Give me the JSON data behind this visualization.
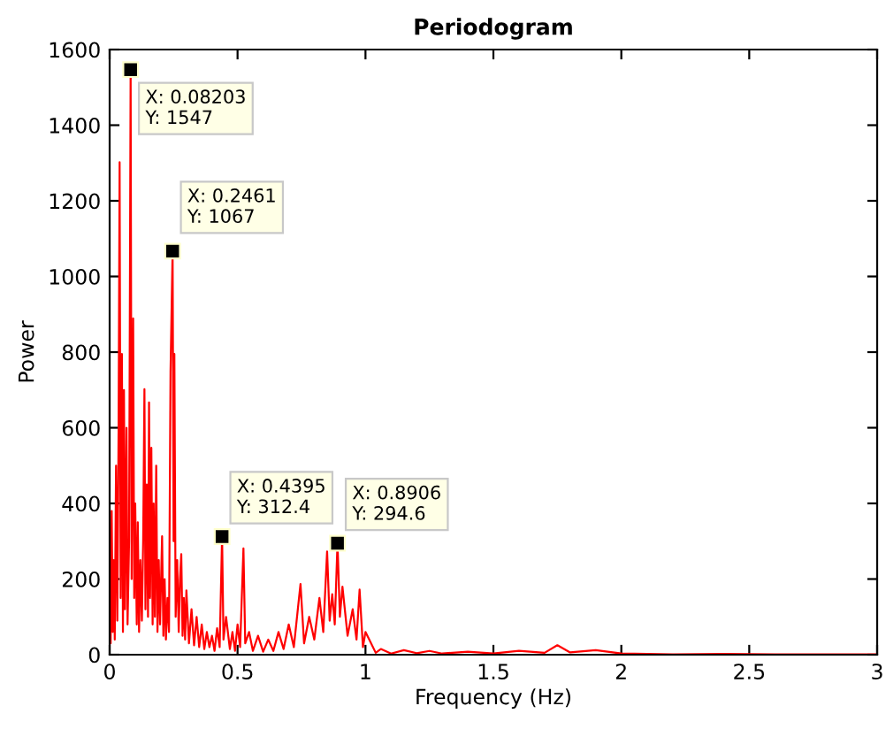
{
  "chart_data": {
    "type": "line",
    "title": "Periodogram",
    "xlabel": "Frequency (Hz)",
    "ylabel": "Power",
    "series": [
      {
        "color": "#ff0000",
        "x": [
          0,
          0.004,
          0.008,
          0.012,
          0.016,
          0.02,
          0.025,
          0.03,
          0.035,
          0.039,
          0.043,
          0.048,
          0.052,
          0.056,
          0.06,
          0.066,
          0.07,
          0.076,
          0.08203,
          0.086,
          0.092,
          0.096,
          0.1,
          0.106,
          0.11,
          0.115,
          0.12,
          0.126,
          0.131,
          0.136,
          0.14,
          0.145,
          0.15,
          0.154,
          0.158,
          0.163,
          0.168,
          0.172,
          0.177,
          0.182,
          0.187,
          0.192,
          0.197,
          0.205,
          0.21,
          0.215,
          0.22,
          0.226,
          0.232,
          0.238,
          0.2461,
          0.25,
          0.253,
          0.258,
          0.264,
          0.27,
          0.275,
          0.28,
          0.285,
          0.29,
          0.295,
          0.3,
          0.31,
          0.32,
          0.33,
          0.34,
          0.35,
          0.36,
          0.37,
          0.38,
          0.39,
          0.4,
          0.41,
          0.42,
          0.43,
          0.4395,
          0.445,
          0.455,
          0.47,
          0.48,
          0.49,
          0.5,
          0.51,
          0.523,
          0.53,
          0.545,
          0.56,
          0.58,
          0.6,
          0.62,
          0.64,
          0.66,
          0.68,
          0.7,
          0.72,
          0.746,
          0.76,
          0.78,
          0.8,
          0.82,
          0.835,
          0.85,
          0.86,
          0.87,
          0.88,
          0.8906,
          0.9,
          0.91,
          0.93,
          0.95,
          0.965,
          0.977,
          0.99,
          1.0,
          1.02,
          1.04,
          1.06,
          1.1,
          1.15,
          1.2,
          1.25,
          1.3,
          1.4,
          1.5,
          1.6,
          1.7,
          1.75,
          1.8,
          1.9,
          2.0,
          2.2,
          2.4,
          2.6,
          2.8,
          3.0
        ],
        "values": [
          200,
          30,
          380,
          60,
          250,
          40,
          500,
          90,
          600,
          1302,
          150,
          795,
          60,
          700,
          120,
          600,
          80,
          300,
          1547,
          200,
          889,
          150,
          400,
          80,
          350,
          60,
          250,
          90,
          300,
          702,
          120,
          450,
          100,
          667,
          150,
          547,
          80,
          400,
          100,
          500,
          60,
          250,
          80,
          313,
          50,
          200,
          40,
          150,
          60,
          750,
          1067,
          300,
          795,
          100,
          250,
          60,
          200,
          266,
          50,
          150,
          40,
          170,
          30,
          120,
          25,
          100,
          20,
          80,
          15,
          60,
          20,
          50,
          10,
          70,
          20,
          312.4,
          40,
          100,
          15,
          60,
          10,
          80,
          20,
          281,
          30,
          60,
          10,
          50,
          8,
          40,
          10,
          60,
          15,
          80,
          20,
          187,
          30,
          100,
          40,
          150,
          60,
          273,
          90,
          160,
          80,
          294.6,
          100,
          180,
          50,
          120,
          40,
          172,
          20,
          60,
          33,
          5,
          15,
          3,
          12,
          4,
          10,
          3,
          8,
          3,
          10,
          5,
          25,
          6,
          12,
          3,
          1,
          2,
          1,
          1,
          1
        ]
      }
    ],
    "xlim": [
      0,
      3
    ],
    "xticks": [
      0,
      0.5,
      1,
      1.5,
      2,
      2.5,
      3
    ],
    "ylim": [
      0,
      1600
    ],
    "yticks": [
      0,
      200,
      400,
      600,
      800,
      1000,
      1200,
      1400,
      1600
    ],
    "grid": false,
    "marker": "none",
    "line_style": "solid",
    "annotations": [
      {
        "text": "X: 0.08203\nY: 1547",
        "x": 0.08203,
        "y": 1547
      },
      {
        "text": "X: 0.2461\nY: 1067",
        "x": 0.2461,
        "y": 1067
      },
      {
        "text": "X: 0.4395\nY: 312.4",
        "x": 0.4395,
        "y": 312.4
      },
      {
        "text": "X: 0.8906\nY: 294.6",
        "x": 0.8906,
        "y": 294.6
      }
    ]
  }
}
